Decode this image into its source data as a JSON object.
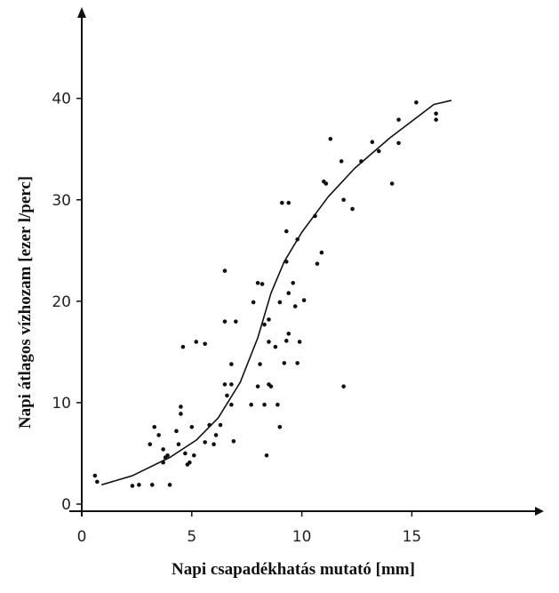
{
  "chart_data": {
    "type": "scatter",
    "x_label": "Napi csapadékhatás mutató [mm]",
    "y_label": "Napi átlagos vízhozam [ezer l/perc]",
    "xlim": [
      0,
      21
    ],
    "ylim": [
      0,
      49
    ],
    "xticks": [
      0,
      5,
      10,
      15
    ],
    "yticks": [
      0,
      10,
      20,
      30,
      40
    ],
    "grid": false,
    "series": [
      {
        "color": "#111111",
        "mode": "markers",
        "x": [
          0.6,
          0.7,
          2.3,
          2.6,
          3.2,
          3.3,
          3.1,
          3.5,
          3.7,
          3.7,
          3.8,
          4.0,
          3.9,
          4.3,
          4.4,
          4.5,
          4.5,
          4.6,
          4.7,
          4.8,
          4.9,
          5.0,
          5.1,
          5.2,
          5.6,
          5.6,
          5.8,
          6.0,
          6.1,
          6.3,
          6.5,
          6.5,
          6.5,
          6.6,
          6.8,
          6.8,
          6.9,
          7.0,
          6.8,
          7.7,
          7.8,
          8.0,
          8.1,
          8.0,
          8.2,
          8.3,
          8.4,
          8.3,
          8.5,
          8.5,
          8.5,
          8.6,
          8.8,
          8.9,
          9.0,
          9.0,
          9.1,
          9.4,
          9.3,
          9.3,
          9.2,
          9.3,
          9.4,
          9.4,
          9.6,
          9.7,
          9.8,
          9.8,
          9.9,
          10.1,
          10.6,
          10.7,
          10.9,
          11.0,
          11.1,
          11.3,
          11.9,
          11.8,
          11.9,
          12.3,
          12.7,
          13.2,
          13.5,
          14.1,
          14.4,
          14.4,
          15.2,
          16.1,
          16.1
        ],
        "values": [
          2.8,
          2.2,
          1.8,
          1.9,
          1.9,
          7.6,
          5.9,
          6.8,
          5.4,
          4.1,
          4.6,
          1.9,
          4.8,
          7.2,
          5.9,
          9.6,
          8.9,
          15.5,
          5.0,
          3.9,
          4.1,
          7.6,
          4.8,
          16.0,
          15.8,
          6.1,
          7.8,
          5.9,
          6.8,
          7.8,
          18.0,
          23.0,
          11.8,
          10.7,
          13.8,
          11.8,
          6.2,
          18.0,
          9.8,
          9.8,
          19.9,
          21.8,
          13.8,
          11.6,
          21.7,
          17.7,
          4.8,
          9.8,
          16.0,
          18.2,
          11.8,
          11.6,
          15.5,
          9.8,
          19.9,
          7.6,
          29.7,
          29.7,
          23.9,
          26.9,
          13.9,
          16.1,
          16.8,
          20.8,
          21.8,
          19.5,
          26.1,
          13.9,
          16.0,
          20.1,
          28.4,
          23.7,
          24.8,
          31.8,
          31.6,
          36.0,
          11.6,
          33.8,
          30.0,
          29.1,
          33.8,
          35.7,
          34.8,
          31.6,
          37.9,
          35.6,
          39.6,
          37.9,
          38.5
        ]
      },
      {
        "color": "#111111",
        "mode": "line",
        "x": [
          0.9,
          2.3,
          4.0,
          5.2,
          6.2,
          7.2,
          8.0,
          8.6,
          9.2,
          10.0,
          11.2,
          12.4,
          14.0,
          16.0,
          16.8
        ],
        "values": [
          1.9,
          2.8,
          4.6,
          6.3,
          8.5,
          12.0,
          16.4,
          20.8,
          23.9,
          26.8,
          30.3,
          33.1,
          36.1,
          39.4,
          39.8
        ]
      }
    ]
  }
}
